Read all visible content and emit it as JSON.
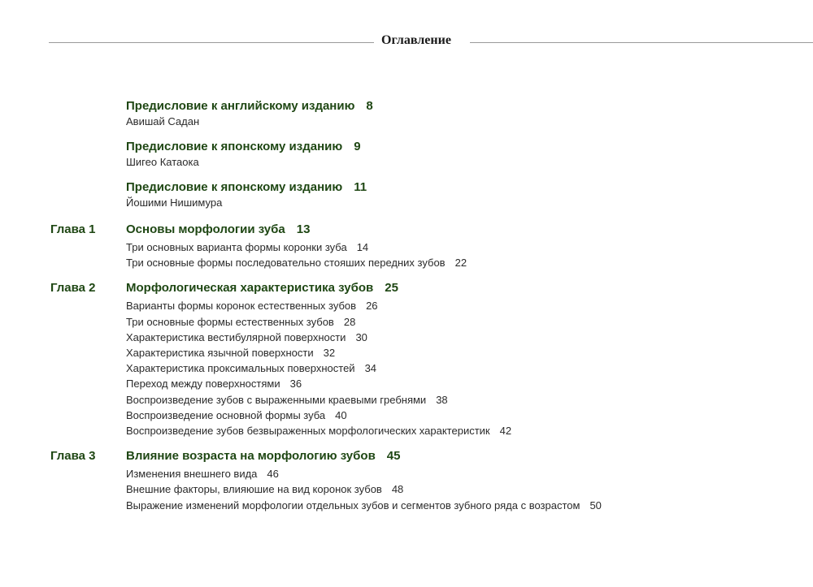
{
  "header": {
    "title": "Оглавление"
  },
  "prefaces": [
    {
      "title": "Предисловие к английскому изданию",
      "page": "8",
      "author": "Авишай Садан"
    },
    {
      "title": "Предисловие к японскому изданию",
      "page": "9",
      "author": "Шигео Катаока"
    },
    {
      "title": "Предисловие к японскому изданию",
      "page": "11",
      "author": "Йошими Нишимура"
    }
  ],
  "chapters": [
    {
      "label": "Глава 1",
      "title": "Основы морфологии зуба",
      "page": "13",
      "items": [
        {
          "title": "Три основных варианта формы коронки зуба",
          "page": "14"
        },
        {
          "title": "Три основные формы последовательно стояших передних зубов",
          "page": "22"
        }
      ]
    },
    {
      "label": "Глава 2",
      "title": "Морфологическая характеристика зубов",
      "page": "25",
      "items": [
        {
          "title": "Варианты формы коронок естественных зубов",
          "page": "26"
        },
        {
          "title": "Три основные формы естественных зубов",
          "page": "28"
        },
        {
          "title": "Характеристика вестибулярной поверхности",
          "page": "30"
        },
        {
          "title": "Характеристика язычной поверхности",
          "page": "32"
        },
        {
          "title": "Характеристика проксимальных поверхностей",
          "page": "34"
        },
        {
          "title": "Переход между поверхностями",
          "page": "36"
        },
        {
          "title": "Воспроизведение зубов с выраженными краевыми гребнями",
          "page": "38"
        },
        {
          "title": "Воспроизведение основной формы зуба",
          "page": "40"
        },
        {
          "title": "Воспроизведение зубов безвыраженных морфологических характеристик",
          "page": "42"
        }
      ]
    },
    {
      "label": "Глава 3",
      "title": "Влияние возраста на морфологию зубов",
      "page": "45",
      "items": [
        {
          "title": "Изменения внешнего вида",
          "page": "46"
        },
        {
          "title": "Внешние факторы, влияюшие на вид коронок зубов",
          "page": "48"
        },
        {
          "title": "Выражение изменений морфологии отдельных зубов и сегментов зубного ряда с возрастом",
          "page": "50"
        }
      ]
    }
  ],
  "colors": {
    "heading": "#1f4714",
    "text": "#2a2a2a",
    "rule": "#9a9a9a"
  }
}
